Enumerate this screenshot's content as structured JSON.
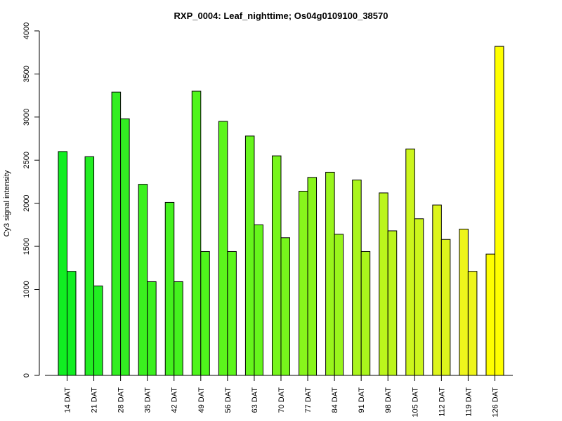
{
  "chart_data": {
    "type": "bar",
    "title": "RXP_0004: Leaf_nighttime; Os04g0109100_38570",
    "xlabel": "",
    "ylabel": "Cy3 signal intensity",
    "categories": [
      "14 DAT",
      "21 DAT",
      "28 DAT",
      "35 DAT",
      "42 DAT",
      "49 DAT",
      "56 DAT",
      "63 DAT",
      "70 DAT",
      "77 DAT",
      "84 DAT",
      "91 DAT",
      "98 DAT",
      "105 DAT",
      "112 DAT",
      "119 DAT",
      "126 DAT"
    ],
    "series": [
      {
        "values": [
          2600,
          2540,
          3290,
          2220,
          2010,
          3300,
          2950,
          2780,
          2550,
          2140,
          2360,
          2270,
          2120,
          2630,
          1980,
          1700,
          1410
        ]
      },
      {
        "values": [
          1210,
          1040,
          2980,
          1090,
          1090,
          1440,
          1440,
          1750,
          1600,
          2300,
          1640,
          1440,
          1680,
          1820,
          1580,
          1210,
          3820
        ]
      }
    ],
    "group_colors": [
      "#11ee22",
      "#22ee22",
      "#33ee22",
      "#3bf01f",
      "#44f21e",
      "#4ff51c",
      "#5cf51c",
      "#66f51c",
      "#77f51c",
      "#88f51c",
      "#99f51c",
      "#aaf51c",
      "#bbf51c",
      "#ccf51c",
      "#ddf51c",
      "#eef51c",
      "#ffff00"
    ],
    "yticks": [
      0,
      1000,
      1500,
      2000,
      2500,
      3000,
      3500,
      4000
    ],
    "ylim": [
      0,
      4000
    ],
    "grid": false,
    "legend": "none"
  }
}
